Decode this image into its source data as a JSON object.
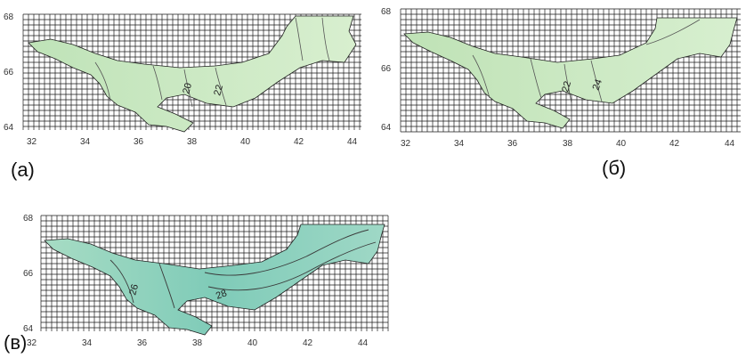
{
  "panels": [
    {
      "label": "(а)",
      "x_ticks": [
        "32",
        "34",
        "36",
        "38",
        "40",
        "42",
        "44"
      ],
      "y_ticks": [
        "68",
        "66",
        "64"
      ],
      "iso_labels": [
        "20",
        "22"
      ],
      "fill_color": "#cfe9c7"
    },
    {
      "label": "(б)",
      "x_ticks": [
        "32",
        "34",
        "36",
        "38",
        "40",
        "42",
        "44"
      ],
      "y_ticks": [
        "68",
        "66",
        "64"
      ],
      "iso_labels": [
        "22",
        "24"
      ],
      "fill_color": "#cbe8c4"
    },
    {
      "label": "(в)",
      "x_ticks": [
        "32",
        "34",
        "36",
        "38",
        "40",
        "42",
        "44"
      ],
      "y_ticks": [
        "68",
        "66",
        "64"
      ],
      "iso_labels": [
        "26",
        "28"
      ],
      "fill_color": "#8fd2c0"
    }
  ]
}
